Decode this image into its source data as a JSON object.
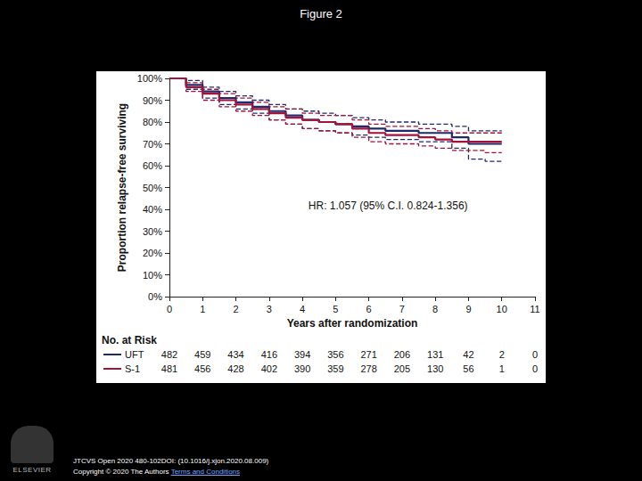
{
  "slide": {
    "title": "Figure 2",
    "footer": [
      "JTCVS Open 2020 480-102DOI: (10.1016/j.xjon.2020.08.009)",
      "Copyright © 2020 The Authors",
      "Terms and Conditions"
    ],
    "publisher": "ELSEVIER"
  },
  "chart_data": {
    "type": "line",
    "y_label": "Proportion relapse-free surviving",
    "x_label": "Years after randomization",
    "annotation": "HR: 1.057 (95% C.I. 0.824-1.356)",
    "x": [
      0,
      0.5,
      1,
      1.5,
      2,
      2.5,
      3,
      3.5,
      4,
      4.5,
      5,
      5.5,
      6,
      6.5,
      7,
      7.5,
      8,
      8.5,
      9,
      9.5,
      10
    ],
    "series": [
      {
        "name": "UFT",
        "color": "#1f2a6b",
        "values": [
          100,
          97,
          94,
          91,
          89,
          87,
          85,
          83,
          81,
          80,
          79,
          78,
          77,
          76,
          76,
          75,
          75,
          73,
          70,
          70,
          70
        ],
        "ci_lower": [
          100,
          95,
          91,
          88,
          86,
          84,
          81,
          79,
          77,
          76,
          75,
          74,
          73,
          72,
          72,
          71,
          71,
          68,
          63,
          62,
          62
        ],
        "ci_upper": [
          100,
          99,
          96,
          94,
          92,
          90,
          88,
          86,
          85,
          84,
          83,
          82,
          81,
          80,
          80,
          79,
          79,
          78,
          76,
          76,
          76
        ]
      },
      {
        "name": "S-1",
        "color": "#a3123a",
        "values": [
          100,
          96,
          93,
          90,
          88,
          86,
          84,
          82,
          81,
          80,
          79,
          77,
          75,
          74,
          74,
          73,
          72,
          71,
          71,
          71,
          71
        ],
        "ci_lower": [
          100,
          94,
          90,
          87,
          85,
          83,
          81,
          79,
          77,
          76,
          75,
          73,
          71,
          70,
          70,
          69,
          68,
          67,
          67,
          66,
          66
        ],
        "ci_upper": [
          100,
          98,
          95,
          93,
          91,
          89,
          87,
          86,
          84,
          83,
          83,
          81,
          79,
          78,
          78,
          77,
          76,
          75,
          75,
          75,
          75
        ]
      }
    ],
    "xlim": [
      0,
      11
    ],
    "xticks": [
      0,
      1,
      2,
      3,
      4,
      5,
      6,
      7,
      8,
      9,
      10,
      11
    ],
    "ylim": [
      0,
      100
    ],
    "yticks": [
      {
        "value": 0,
        "label": "0%"
      },
      {
        "value": 10,
        "label": "10%"
      },
      {
        "value": 20,
        "label": "20%"
      },
      {
        "value": 30,
        "label": "30%"
      },
      {
        "value": 40,
        "label": "40%"
      },
      {
        "value": 50,
        "label": "50%"
      },
      {
        "value": 60,
        "label": "60%"
      },
      {
        "value": 70,
        "label": "70%"
      },
      {
        "value": 80,
        "label": "80%"
      },
      {
        "value": 90,
        "label": "90%"
      },
      {
        "value": 100,
        "label": "100%"
      }
    ],
    "grid": false,
    "at_risk": {
      "title": "No. at Risk",
      "x": [
        0,
        1,
        2,
        3,
        4,
        5,
        6,
        7,
        8,
        9,
        10,
        11
      ],
      "rows": [
        {
          "name": "UFT",
          "values": [
            482,
            459,
            434,
            416,
            394,
            356,
            271,
            206,
            131,
            42,
            2,
            0
          ]
        },
        {
          "name": "S-1",
          "values": [
            481,
            456,
            428,
            402,
            390,
            359,
            278,
            205,
            130,
            56,
            1,
            0
          ]
        }
      ]
    }
  }
}
